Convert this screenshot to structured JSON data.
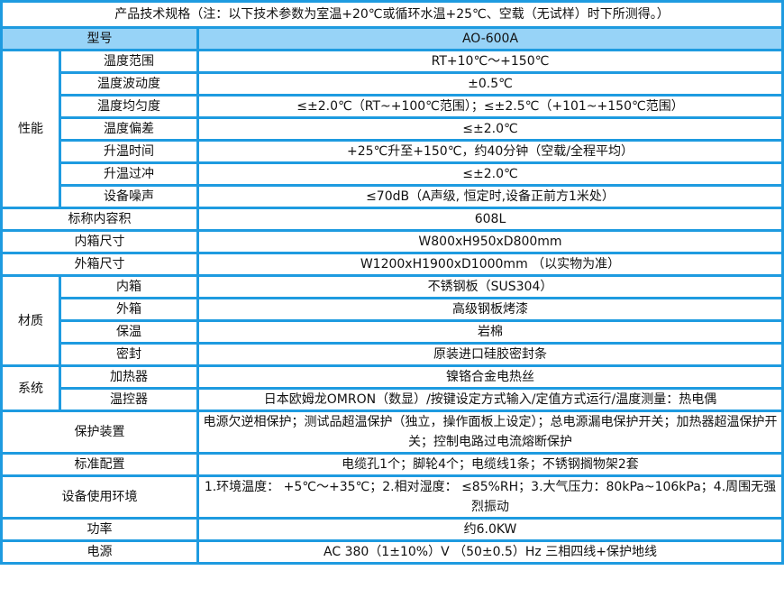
{
  "title": "产品技术规格（注：以下技术参数为室温+20℃或循环水温+25℃、空载（无试样）时下所测得。）",
  "header": {
    "label": "型号",
    "value": "AO-600A"
  },
  "colors": {
    "border": "#1e9be0",
    "header_bg": "#97d3f7"
  },
  "rows": [
    {
      "group": "性能",
      "span": 7,
      "label": "温度范围",
      "value": "RT+10℃～+150℃"
    },
    {
      "label": "温度波动度",
      "value": "±0.5℃"
    },
    {
      "label": "温度均匀度",
      "value": "≤±2.0℃（RT~+100℃范围）；≤±2.5℃（+101~+150℃范围）"
    },
    {
      "label": "温度偏差",
      "value": "≤±2.0℃"
    },
    {
      "label": "升温时间",
      "value": "+25℃升至+150℃，约40分钟（空载/全程平均）"
    },
    {
      "label": "升温过冲",
      "value": "≤±2.0℃"
    },
    {
      "label": "设备噪声",
      "value": "≤70dB（A声级, 恒定时,设备正前方1米处）"
    },
    {
      "full": true,
      "label": "标称内容积",
      "value": "608L"
    },
    {
      "full": true,
      "label": "内箱尺寸",
      "value": "W800xH950xD800mm"
    },
    {
      "full": true,
      "label": "外箱尺寸",
      "value": "W1200xH1900xD1000mm （以实物为准）"
    },
    {
      "group": "材质",
      "span": 4,
      "label": "内箱",
      "value": "不锈钢板（SUS304）"
    },
    {
      "label": "外箱",
      "value": "高级钢板烤漆"
    },
    {
      "label": "保温",
      "value": "岩棉"
    },
    {
      "label": "密封",
      "value": "原装进口硅胶密封条"
    },
    {
      "group": "系统",
      "span": 2,
      "label": "加热器",
      "value": "镍铬合金电热丝"
    },
    {
      "label": "温控器",
      "value": "日本欧姆龙OMRON（数显）/按键设定方式输入/定值方式运行/温度测量：热电偶"
    },
    {
      "full": true,
      "tall": "tall",
      "label": "保护装置",
      "value": "电源欠逆相保护；测试品超温保护（独立，操作面板上设定）；总电源漏电保护开关；加热器超温保护开关；控制电路过电流熔断保护"
    },
    {
      "full": true,
      "label": "标准配置",
      "value": "电缆孔1个；脚轮4个；电缆线1条；不锈钢搁物架2套"
    },
    {
      "full": true,
      "tall": "tall2",
      "label": "设备使用环境",
      "value": "1.环境温度： +5℃～+35℃；2.相对湿度： ≤85%RH；3.大气压力：80kPa~106kPa；4.周围无强烈振动"
    },
    {
      "full": true,
      "label": "功率",
      "value": "约6.0KW"
    },
    {
      "full": true,
      "label": "电源",
      "value": "AC 380（1±10%）V （50±0.5）Hz 三相四线+保护地线"
    }
  ]
}
